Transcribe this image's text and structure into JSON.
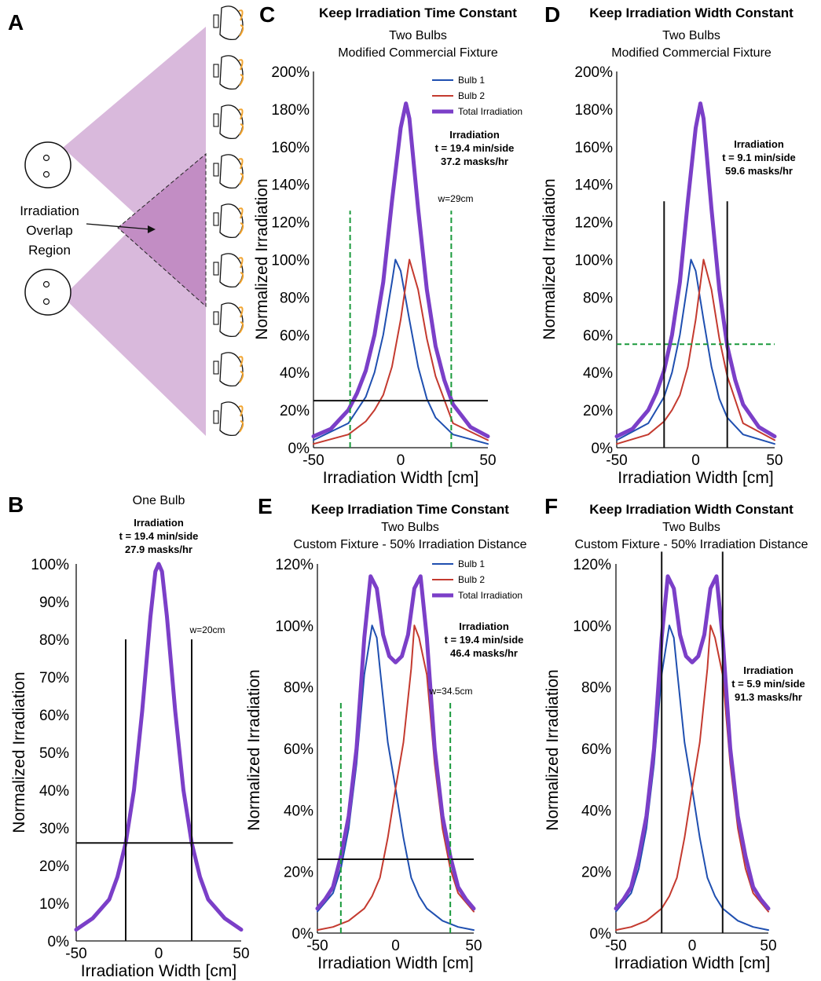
{
  "panel_a": {
    "letter": "A",
    "overlap_label": [
      "Irradiation",
      "Overlap",
      "Region"
    ],
    "colors": {
      "light_cone": "#d9b9dc",
      "overlap": "#c28dc4",
      "mask_strap": "#f2a531"
    }
  },
  "legend": {
    "bulb1": "Bulb 1",
    "bulb2": "Bulb 2",
    "total": "Total Irradiation"
  },
  "colors": {
    "bulb1": "#1f4fb0",
    "bulb2": "#c43a2f",
    "total": "#7b3fc8",
    "guide": "#1a9a3c",
    "line": "#111111"
  },
  "chart_data": [
    {
      "id": "C",
      "type": "line",
      "title": "Keep Irradiation Time Constant",
      "subtitle": [
        "Two Bulbs",
        "Modified Commercial Fixture"
      ],
      "xlabel": "Irradiation Width [cm]",
      "ylabel": "Normalized Irradiation",
      "xlim": [
        -50,
        50
      ],
      "ylim": [
        0,
        200
      ],
      "xticks": [
        "-50",
        "0",
        "50"
      ],
      "yticks": [
        "0%",
        "20%",
        "40%",
        "60%",
        "80%",
        "100%",
        "120%",
        "140%",
        "160%",
        "180%",
        "200%"
      ],
      "annotation": [
        "Irradiation",
        "t = 19.4 min/side",
        "37.2 masks/hr"
      ],
      "width_label": "w=29cm",
      "legend": true,
      "series": [
        {
          "name": "Bulb 1",
          "color": "#1f4fb0",
          "x": [
            -50,
            -30,
            -20,
            -15,
            -10,
            -5,
            -3,
            0,
            5,
            10,
            15,
            20,
            30,
            50
          ],
          "y": [
            4,
            13,
            27,
            40,
            60,
            88,
            100,
            94,
            68,
            43,
            26,
            16,
            7,
            2
          ]
        },
        {
          "name": "Bulb 2",
          "color": "#c43a2f",
          "x": [
            -50,
            -30,
            -20,
            -15,
            -10,
            -5,
            0,
            5,
            10,
            15,
            20,
            30,
            50
          ],
          "y": [
            2,
            7,
            14,
            20,
            28,
            43,
            68,
            100,
            84,
            58,
            38,
            13,
            4
          ]
        },
        {
          "name": "Total Irradiation",
          "color": "#7b3fc8",
          "x": [
            -50,
            -40,
            -30,
            -25,
            -20,
            -15,
            -10,
            -5,
            0,
            3,
            5,
            10,
            15,
            20,
            25,
            30,
            40,
            50
          ],
          "y": [
            6,
            10,
            20,
            29,
            41,
            60,
            88,
            131,
            170,
            183,
            175,
            127,
            84,
            54,
            36,
            23,
            11,
            6
          ]
        }
      ],
      "hline": {
        "y": 25,
        "x": [
          -50,
          50
        ]
      },
      "vlines": [
        {
          "x": -29,
          "y": [
            0,
            126
          ],
          "dashed": true
        },
        {
          "x": 29,
          "y": [
            0,
            126
          ],
          "dashed": true
        }
      ]
    },
    {
      "id": "D",
      "type": "line",
      "title": "Keep Irradiation Width Constant",
      "subtitle": [
        "Two Bulbs",
        "Modified Commercial Fixture"
      ],
      "xlabel": "Irradiation Width [cm]",
      "ylabel": "Normalized Irradiation",
      "xlim": [
        -50,
        50
      ],
      "ylim": [
        0,
        200
      ],
      "xticks": [
        "-50",
        "0",
        "50"
      ],
      "yticks": [
        "0%",
        "20%",
        "40%",
        "60%",
        "80%",
        "100%",
        "120%",
        "140%",
        "160%",
        "180%",
        "200%"
      ],
      "annotation": [
        "Irradiation",
        "t = 9.1 min/side",
        "59.6 masks/hr"
      ],
      "legend": false,
      "series": [
        {
          "name": "Bulb 1",
          "color": "#1f4fb0",
          "x": [
            -50,
            -30,
            -20,
            -15,
            -10,
            -5,
            -3,
            0,
            5,
            10,
            15,
            20,
            30,
            50
          ],
          "y": [
            4,
            13,
            27,
            40,
            60,
            88,
            100,
            94,
            68,
            43,
            26,
            16,
            7,
            2
          ]
        },
        {
          "name": "Bulb 2",
          "color": "#c43a2f",
          "x": [
            -50,
            -30,
            -20,
            -15,
            -10,
            -5,
            0,
            5,
            10,
            15,
            20,
            30,
            50
          ],
          "y": [
            2,
            7,
            14,
            20,
            28,
            43,
            68,
            100,
            84,
            58,
            38,
            13,
            4
          ]
        },
        {
          "name": "Total Irradiation",
          "color": "#7b3fc8",
          "x": [
            -50,
            -40,
            -30,
            -25,
            -20,
            -15,
            -10,
            -5,
            0,
            3,
            5,
            10,
            15,
            20,
            25,
            30,
            40,
            50
          ],
          "y": [
            6,
            10,
            20,
            29,
            41,
            60,
            88,
            131,
            170,
            183,
            175,
            127,
            84,
            54,
            36,
            23,
            11,
            6
          ]
        }
      ],
      "hline": {
        "y": 55,
        "x": [
          -50,
          50
        ],
        "dashed": true
      },
      "vlines": [
        {
          "x": -20,
          "y": [
            0,
            131
          ]
        },
        {
          "x": 20,
          "y": [
            0,
            131
          ]
        }
      ]
    },
    {
      "id": "B",
      "type": "line",
      "title": "One Bulb",
      "subtitle": [],
      "xlabel": "Irradiation Width [cm]",
      "ylabel": "Normalized Irradiation",
      "xlim": [
        -50,
        50
      ],
      "ylim": [
        0,
        100
      ],
      "xticks": [
        "-50",
        "0",
        "50"
      ],
      "yticks": [
        "0%",
        "10%",
        "20%",
        "30%",
        "40%",
        "50%",
        "60%",
        "70%",
        "80%",
        "90%",
        "100%"
      ],
      "annotation": [
        "Irradiation",
        "t = 19.4 min/side",
        "27.9 masks/hr"
      ],
      "width_label": "w=20cm",
      "legend": false,
      "series": [
        {
          "name": "Total Irradiation",
          "color": "#7b3fc8",
          "x": [
            -50,
            -40,
            -30,
            -25,
            -20,
            -15,
            -10,
            -5,
            -2,
            0,
            2,
            5,
            10,
            15,
            20,
            25,
            30,
            40,
            50
          ],
          "y": [
            3,
            6,
            11,
            17,
            26,
            40,
            61,
            86,
            98,
            100,
            98,
            86,
            61,
            40,
            26,
            17,
            11,
            6,
            3
          ]
        }
      ],
      "hline": {
        "y": 26,
        "x": [
          -50,
          45
        ]
      },
      "vlines": [
        {
          "x": -20,
          "y": [
            0,
            80
          ]
        },
        {
          "x": 20,
          "y": [
            0,
            80
          ]
        }
      ]
    },
    {
      "id": "E",
      "type": "line",
      "title": "Keep Irradiation Time Constant",
      "subtitle": [
        "Two Bulbs",
        "Custom Fixture - 50% Irradiation Distance"
      ],
      "xlabel": "Irradiation Width [cm]",
      "ylabel": "Normalized Irradiation",
      "xlim": [
        -50,
        50
      ],
      "ylim": [
        0,
        120
      ],
      "xticks": [
        "-50",
        "0",
        "50"
      ],
      "yticks": [
        "0%",
        "20%",
        "40%",
        "60%",
        "80%",
        "100%",
        "120%"
      ],
      "annotation": [
        "Irradiation",
        "t = 19.4 min/side",
        "46.4 masks/hr"
      ],
      "width_label": "w=34.5cm",
      "legend": true,
      "series": [
        {
          "name": "Bulb 1",
          "color": "#1f4fb0",
          "x": [
            -50,
            -40,
            -35,
            -30,
            -25,
            -20,
            -15,
            -12,
            -10,
            -5,
            0,
            5,
            10,
            15,
            20,
            30,
            40,
            50
          ],
          "y": [
            7,
            13,
            21,
            34,
            55,
            84,
            100,
            96,
            86,
            62,
            47,
            31,
            18,
            12,
            8,
            4,
            2,
            1
          ]
        },
        {
          "name": "Bulb 2",
          "color": "#c43a2f",
          "x": [
            -50,
            -40,
            -30,
            -20,
            -15,
            -10,
            -5,
            0,
            5,
            10,
            12,
            15,
            20,
            25,
            30,
            35,
            40,
            50
          ],
          "y": [
            1,
            2,
            4,
            8,
            12,
            18,
            31,
            47,
            62,
            86,
            100,
            96,
            84,
            55,
            34,
            21,
            13,
            7
          ]
        },
        {
          "name": "Total Irradiation",
          "color": "#7b3fc8",
          "x": [
            -50,
            -45,
            -40,
            -35,
            -30,
            -25,
            -20,
            -16,
            -12,
            -8,
            -4,
            0,
            4,
            8,
            12,
            16,
            20,
            25,
            30,
            35,
            40,
            45,
            50
          ],
          "y": [
            8,
            11,
            15,
            25,
            38,
            60,
            96,
            116,
            112,
            97,
            90,
            88,
            90,
            97,
            112,
            116,
            96,
            60,
            38,
            25,
            15,
            11,
            8
          ]
        }
      ],
      "hline": {
        "y": 24,
        "x": [
          -50,
          50
        ]
      },
      "vlines": [
        {
          "x": -35,
          "y": [
            0,
            75
          ],
          "dashed": true
        },
        {
          "x": 35,
          "y": [
            0,
            75
          ],
          "dashed": true
        }
      ]
    },
    {
      "id": "F",
      "type": "line",
      "title": "Keep Irradiation Width Constant",
      "subtitle": [
        "Two Bulbs",
        "Custom Fixture - 50% Irradiation Distance"
      ],
      "xlabel": "Irradiation Width [cm]",
      "ylabel": "Normalized Irradiation",
      "xlim": [
        -50,
        50
      ],
      "ylim": [
        0,
        120
      ],
      "xticks": [
        "-50",
        "0",
        "50"
      ],
      "yticks": [
        "0%",
        "20%",
        "40%",
        "60%",
        "80%",
        "100%",
        "120%"
      ],
      "annotation": [
        "Irradiation",
        "t = 5.9 min/side",
        "91.3 masks/hr"
      ],
      "legend": false,
      "series": [
        {
          "name": "Bulb 1",
          "color": "#1f4fb0",
          "x": [
            -50,
            -40,
            -35,
            -30,
            -25,
            -20,
            -15,
            -12,
            -10,
            -5,
            0,
            5,
            10,
            15,
            20,
            30,
            40,
            50
          ],
          "y": [
            7,
            13,
            21,
            34,
            55,
            84,
            100,
            96,
            86,
            62,
            47,
            31,
            18,
            12,
            8,
            4,
            2,
            1
          ]
        },
        {
          "name": "Bulb 2",
          "color": "#c43a2f",
          "x": [
            -50,
            -40,
            -30,
            -20,
            -15,
            -10,
            -5,
            0,
            5,
            10,
            12,
            15,
            20,
            25,
            30,
            35,
            40,
            50
          ],
          "y": [
            1,
            2,
            4,
            8,
            12,
            18,
            31,
            47,
            62,
            86,
            100,
            96,
            84,
            55,
            34,
            21,
            13,
            7
          ]
        },
        {
          "name": "Total Irradiation",
          "color": "#7b3fc8",
          "x": [
            -50,
            -45,
            -40,
            -35,
            -30,
            -25,
            -20,
            -16,
            -12,
            -8,
            -4,
            0,
            4,
            8,
            12,
            16,
            20,
            25,
            30,
            35,
            40,
            45,
            50
          ],
          "y": [
            8,
            11,
            15,
            25,
            38,
            60,
            96,
            116,
            112,
            97,
            90,
            88,
            90,
            97,
            112,
            116,
            96,
            60,
            38,
            25,
            15,
            11,
            8
          ]
        }
      ],
      "vlines": [
        {
          "x": -20,
          "y": [
            0,
            124
          ]
        },
        {
          "x": 20,
          "y": [
            0,
            124
          ]
        }
      ]
    }
  ]
}
